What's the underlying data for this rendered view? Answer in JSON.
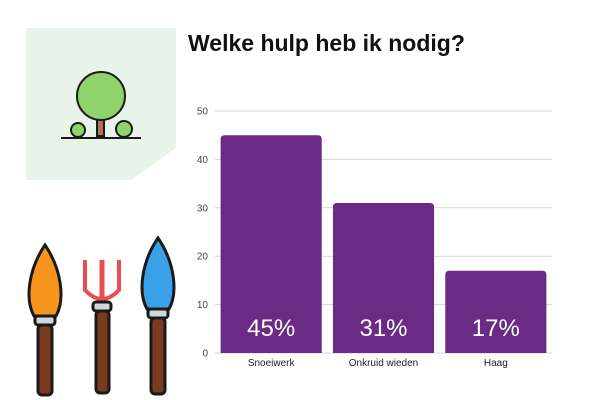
{
  "title": "Welke hulp heb ik nodig?",
  "illustration": {
    "card_icon": "tree-icon",
    "tools": [
      "trowel-icon",
      "garden-fork-icon",
      "trowel-icon"
    ],
    "colors": {
      "card_bg": "#e8f3ea",
      "tree_green": "#8fd46a",
      "orange": "#f7941d",
      "red": "#e84f4f",
      "blue": "#3aa0e8",
      "handle": "#7a3b1d"
    }
  },
  "chart_data": {
    "type": "bar",
    "title": "Welke hulp heb ik nodig?",
    "categories": [
      "Snoeiwerk",
      "Onkruid wieden",
      "Haag"
    ],
    "values": [
      45,
      31,
      17
    ],
    "data_labels": [
      "45%",
      "31%",
      "17%"
    ],
    "yticks": [
      "0",
      "10",
      "20",
      "30",
      "40",
      "50"
    ],
    "ylim": [
      0,
      50
    ],
    "xlabel": "",
    "ylabel": "",
    "grid": true,
    "bar_color": "#6b2a85"
  }
}
